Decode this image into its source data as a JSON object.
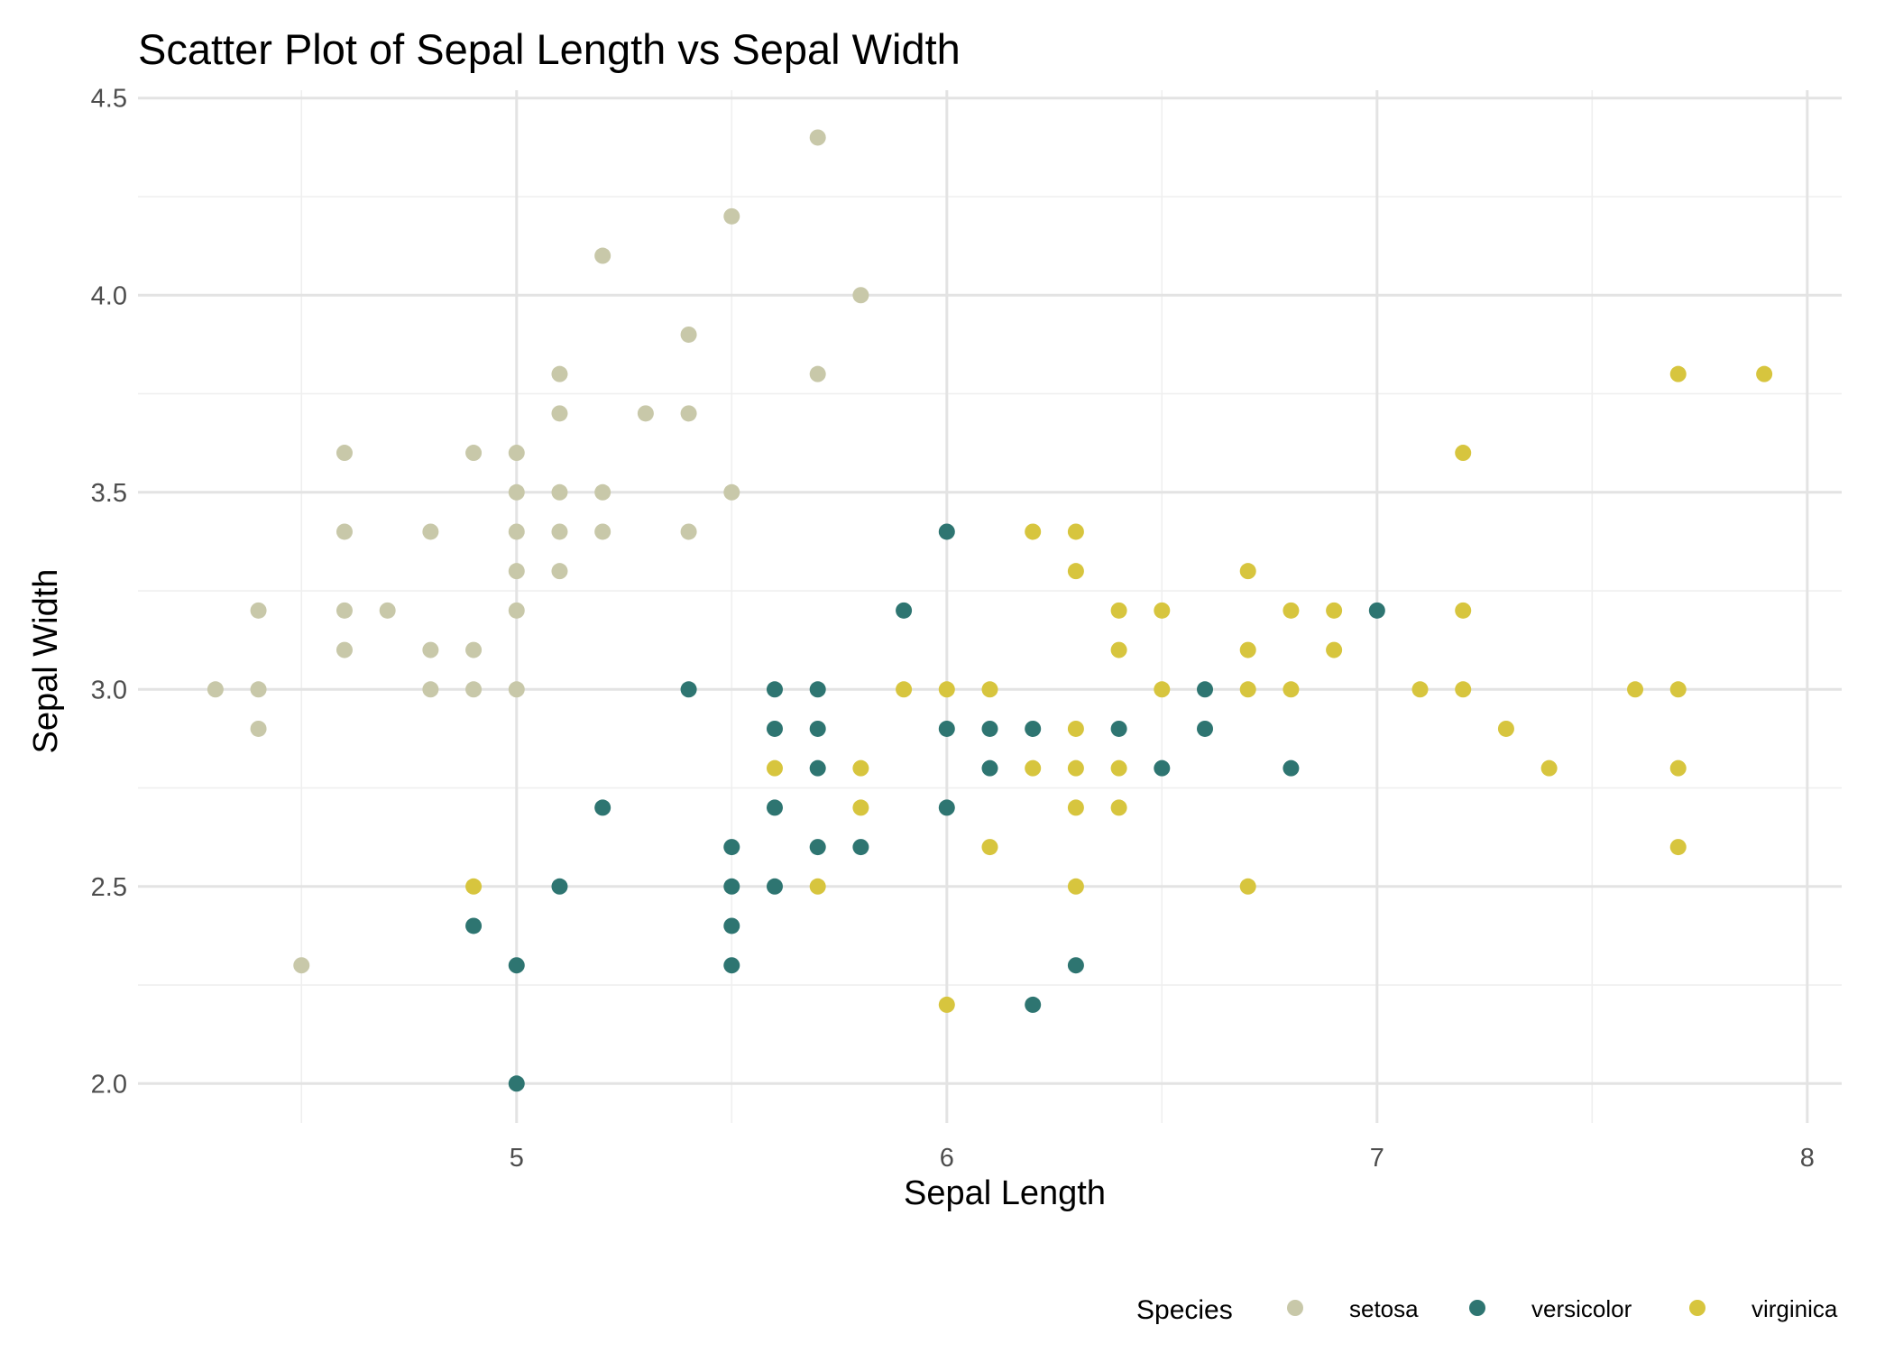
{
  "chart_data": {
    "type": "scatter",
    "title": "Scatter Plot of Sepal Length vs Sepal Width",
    "xlabel": "Sepal Length",
    "ylabel": "Sepal Width",
    "xlim": [
      4.12,
      8.08
    ],
    "ylim": [
      1.9,
      4.52
    ],
    "x_ticks": [
      5,
      6,
      7,
      8
    ],
    "x_tick_labels": [
      "5",
      "6",
      "7",
      "8"
    ],
    "y_ticks": [
      2.0,
      2.5,
      3.0,
      3.5,
      4.0,
      4.5
    ],
    "y_tick_labels": [
      "2.0",
      "2.5",
      "3.0",
      "3.5",
      "4.0",
      "4.5"
    ],
    "x_minor_ticks": [
      4.5,
      5.5,
      6.5,
      7.5
    ],
    "y_minor_ticks": [
      2.25,
      2.75,
      3.25,
      3.75,
      4.25
    ],
    "grid": true,
    "legend": {
      "title": "Species",
      "position": "bottom-right"
    },
    "series": [
      {
        "name": "setosa",
        "color": "#c8c8a9",
        "points": [
          [
            4.3,
            3.0
          ],
          [
            4.4,
            3.2
          ],
          [
            4.4,
            3.0
          ],
          [
            4.4,
            2.9
          ],
          [
            4.5,
            2.3
          ],
          [
            4.6,
            3.6
          ],
          [
            4.6,
            3.4
          ],
          [
            4.6,
            3.2
          ],
          [
            4.6,
            3.1
          ],
          [
            4.7,
            3.2
          ],
          [
            4.8,
            3.4
          ],
          [
            4.8,
            3.1
          ],
          [
            4.8,
            3.0
          ],
          [
            4.9,
            3.6
          ],
          [
            4.9,
            3.1
          ],
          [
            4.9,
            3.0
          ],
          [
            5.0,
            3.6
          ],
          [
            5.0,
            3.5
          ],
          [
            5.0,
            3.4
          ],
          [
            5.0,
            3.3
          ],
          [
            5.0,
            3.2
          ],
          [
            5.0,
            3.0
          ],
          [
            5.1,
            3.8
          ],
          [
            5.1,
            3.7
          ],
          [
            5.1,
            3.5
          ],
          [
            5.1,
            3.4
          ],
          [
            5.1,
            3.3
          ],
          [
            5.2,
            4.1
          ],
          [
            5.2,
            3.5
          ],
          [
            5.2,
            3.4
          ],
          [
            5.3,
            3.7
          ],
          [
            5.4,
            3.9
          ],
          [
            5.4,
            3.7
          ],
          [
            5.4,
            3.4
          ],
          [
            5.5,
            4.2
          ],
          [
            5.5,
            3.5
          ],
          [
            5.7,
            4.4
          ],
          [
            5.7,
            3.8
          ],
          [
            5.8,
            4.0
          ]
        ]
      },
      {
        "name": "versicolor",
        "color": "#2e7571",
        "points": [
          [
            4.9,
            2.4
          ],
          [
            5.0,
            2.3
          ],
          [
            5.0,
            2.0
          ],
          [
            5.1,
            2.5
          ],
          [
            5.2,
            2.7
          ],
          [
            5.4,
            3.0
          ],
          [
            5.5,
            2.6
          ],
          [
            5.5,
            2.5
          ],
          [
            5.5,
            2.4
          ],
          [
            5.5,
            2.3
          ],
          [
            5.6,
            3.0
          ],
          [
            5.6,
            2.9
          ],
          [
            5.6,
            2.7
          ],
          [
            5.6,
            2.5
          ],
          [
            5.7,
            3.0
          ],
          [
            5.7,
            2.9
          ],
          [
            5.7,
            2.8
          ],
          [
            5.7,
            2.6
          ],
          [
            5.8,
            2.6
          ],
          [
            5.9,
            3.2
          ],
          [
            6.0,
            3.4
          ],
          [
            6.0,
            2.9
          ],
          [
            6.0,
            2.7
          ],
          [
            6.1,
            2.9
          ],
          [
            6.1,
            2.8
          ],
          [
            6.2,
            2.9
          ],
          [
            6.2,
            2.2
          ],
          [
            6.3,
            2.3
          ],
          [
            6.4,
            2.9
          ],
          [
            6.5,
            2.8
          ],
          [
            6.6,
            3.0
          ],
          [
            6.6,
            2.9
          ],
          [
            6.8,
            2.8
          ],
          [
            7.0,
            3.2
          ]
        ]
      },
      {
        "name": "virginica",
        "color": "#d7c53e",
        "points": [
          [
            4.9,
            2.5
          ],
          [
            5.6,
            2.8
          ],
          [
            5.7,
            2.5
          ],
          [
            5.8,
            2.8
          ],
          [
            5.8,
            2.7
          ],
          [
            5.9,
            3.0
          ],
          [
            6.0,
            3.0
          ],
          [
            6.0,
            2.2
          ],
          [
            6.1,
            3.0
          ],
          [
            6.1,
            2.6
          ],
          [
            6.2,
            3.4
          ],
          [
            6.2,
            2.8
          ],
          [
            6.3,
            3.4
          ],
          [
            6.3,
            3.3
          ],
          [
            6.3,
            2.9
          ],
          [
            6.3,
            2.8
          ],
          [
            6.3,
            2.7
          ],
          [
            6.3,
            2.5
          ],
          [
            6.4,
            3.2
          ],
          [
            6.4,
            3.1
          ],
          [
            6.4,
            2.8
          ],
          [
            6.4,
            2.7
          ],
          [
            6.5,
            3.2
          ],
          [
            6.5,
            3.0
          ],
          [
            6.7,
            3.3
          ],
          [
            6.7,
            3.1
          ],
          [
            6.7,
            3.0
          ],
          [
            6.7,
            2.5
          ],
          [
            6.8,
            3.2
          ],
          [
            6.8,
            3.0
          ],
          [
            6.9,
            3.2
          ],
          [
            6.9,
            3.1
          ],
          [
            7.1,
            3.0
          ],
          [
            7.2,
            3.6
          ],
          [
            7.2,
            3.2
          ],
          [
            7.2,
            3.0
          ],
          [
            7.3,
            2.9
          ],
          [
            7.4,
            2.8
          ],
          [
            7.6,
            3.0
          ],
          [
            7.7,
            3.8
          ],
          [
            7.7,
            3.0
          ],
          [
            7.7,
            2.8
          ],
          [
            7.7,
            2.6
          ],
          [
            7.9,
            3.8
          ]
        ]
      }
    ]
  }
}
